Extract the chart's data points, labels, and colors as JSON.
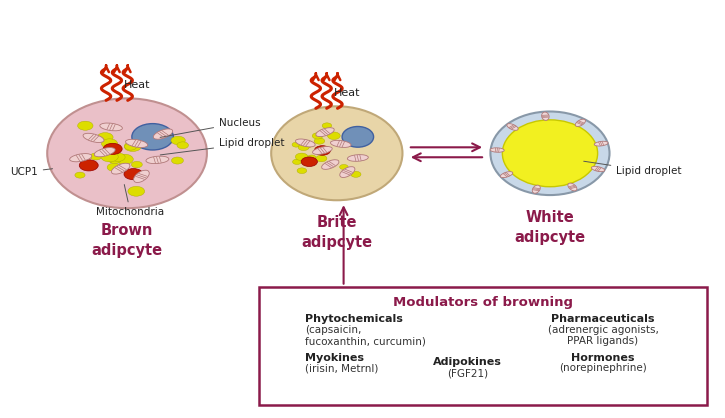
{
  "bg_color": "#ffffff",
  "label_color": "#8B1A4A",
  "arrow_color": "#8B1A4A",
  "box_border_color": "#8B1A4A",
  "box_title": "Modulators of browning",
  "col1_bold": [
    "Phytochemicals",
    "Myokines"
  ],
  "col1_normal": [
    "(capsaicin,\nfucoxanthin, curcumin)",
    "(irisin, Metrnl)"
  ],
  "col2_bold": [
    "Adipokines"
  ],
  "col2_normal": [
    "(FGF21)"
  ],
  "col3_bold": [
    "Pharmaceuticals",
    "Hormones"
  ],
  "col3_normal": [
    "(adrenergic agonists,\nPPAR ligands)",
    "(norepinephrine)"
  ],
  "brown_label": "Brown\nadipcyte",
  "brite_label": "Brite\nadipcyte",
  "white_label": "White\nadipcyte",
  "heat_label": "Heat",
  "nucleus_label": "Nucleus",
  "lipid_label": "Lipid droplet",
  "mito_label": "Mitochondria",
  "ucp1_label": "UCP1"
}
